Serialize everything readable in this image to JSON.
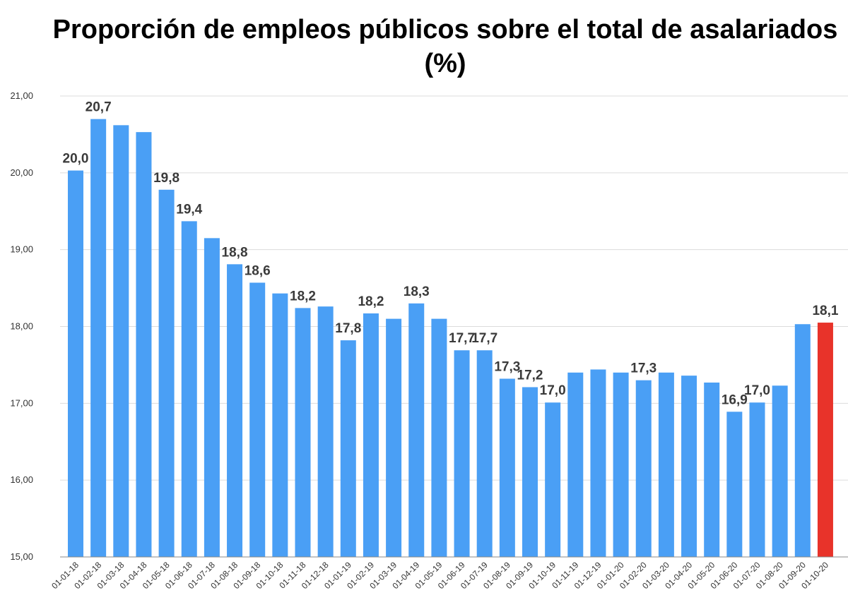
{
  "chart_data": {
    "type": "bar",
    "title": "Proporción de empleos públicos sobre el total de asalariados",
    "subtitle": "(%)",
    "xlabel": "",
    "ylabel": "",
    "ylim": [
      15,
      21
    ],
    "yticks": [
      "15,00",
      "16,00",
      "17,00",
      "18,00",
      "19,00",
      "20,00",
      "21,00"
    ],
    "grid": true,
    "legend": "none",
    "colors": {
      "default": "#4a9ff5",
      "highlight": "#e8332a"
    },
    "highlight_index": 33,
    "categories": [
      "01-01-18",
      "01-02-18",
      "01-03-18",
      "01-04-18",
      "01-05-18",
      "01-06-18",
      "01-07-18",
      "01-08-18",
      "01-09-18",
      "01-10-18",
      "01-11-18",
      "01-12-18",
      "01-01-19",
      "01-02-19",
      "01-03-19",
      "01-04-19",
      "01-05-19",
      "01-06-19",
      "01-07-19",
      "01-08-19",
      "01-09-19",
      "01-10-19",
      "01-11-19",
      "01-12-19",
      "01-01-20",
      "01-02-20",
      "01-03-20",
      "01-04-20",
      "01-05-20",
      "01-06-20",
      "01-07-20",
      "01-08-20",
      "01-09-20",
      "01-10-20"
    ],
    "values": [
      20.03,
      20.7,
      20.62,
      20.53,
      19.78,
      19.37,
      19.15,
      18.81,
      18.57,
      18.43,
      18.24,
      18.26,
      17.82,
      18.17,
      18.1,
      18.3,
      18.1,
      17.69,
      17.69,
      17.32,
      17.21,
      17.01,
      17.4,
      17.44,
      17.4,
      17.3,
      17.4,
      17.36,
      17.27,
      16.89,
      17.01,
      17.23,
      18.03,
      18.05
    ],
    "data_labels": [
      "20,0",
      "20,7",
      "",
      "",
      "19,8",
      "19,4",
      "",
      "18,8",
      "18,6",
      "",
      "18,2",
      "",
      "17,8",
      "18,2",
      "",
      "18,3",
      "",
      "17,7",
      "17,7",
      "17,3",
      "17,2",
      "17,0",
      "",
      "",
      "",
      "17,3",
      "",
      "",
      "",
      "16,9",
      "17,0",
      "",
      "",
      "18,1"
    ]
  }
}
